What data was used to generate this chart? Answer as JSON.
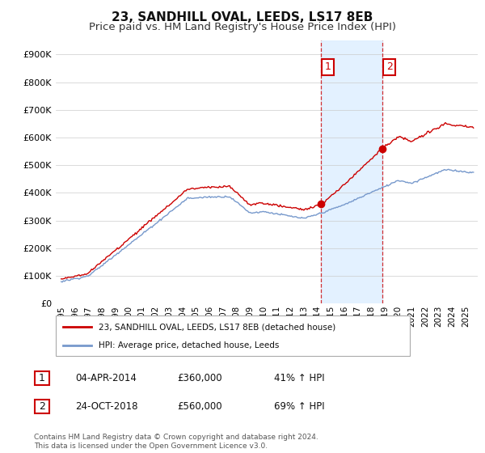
{
  "title": "23, SANDHILL OVAL, LEEDS, LS17 8EB",
  "subtitle": "Price paid vs. HM Land Registry's House Price Index (HPI)",
  "ylim": [
    0,
    950000
  ],
  "yticks": [
    0,
    100000,
    200000,
    300000,
    400000,
    500000,
    600000,
    700000,
    800000,
    900000
  ],
  "ytick_labels": [
    "£0",
    "£100K",
    "£200K",
    "£300K",
    "£400K",
    "£500K",
    "£600K",
    "£700K",
    "£800K",
    "£900K"
  ],
  "sale1_date": 2014.25,
  "sale1_price": 360000,
  "sale2_date": 2018.81,
  "sale2_price": 560000,
  "hpi_color": "#7799cc",
  "price_color": "#cc0000",
  "shade_color": "#ddeeff",
  "legend_label1": "23, SANDHILL OVAL, LEEDS, LS17 8EB (detached house)",
  "legend_label2": "HPI: Average price, detached house, Leeds",
  "table_row1": [
    "1",
    "04-APR-2014",
    "£360,000",
    "41% ↑ HPI"
  ],
  "table_row2": [
    "2",
    "24-OCT-2018",
    "£560,000",
    "69% ↑ HPI"
  ],
  "footer": "Contains HM Land Registry data © Crown copyright and database right 2024.\nThis data is licensed under the Open Government Licence v3.0.",
  "title_fontsize": 11,
  "subtitle_fontsize": 9.5,
  "background_color": "#ffffff"
}
